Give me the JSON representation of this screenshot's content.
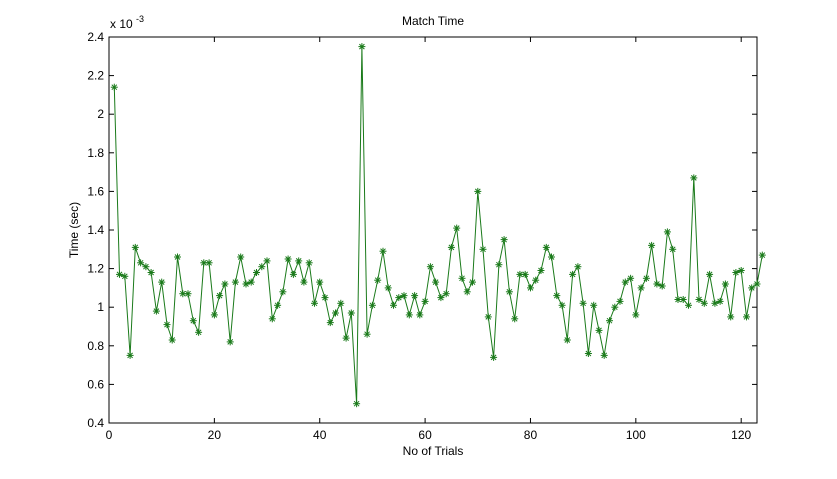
{
  "chart_data": {
    "type": "line",
    "title": "Match Time",
    "xlabel": "No of Trials",
    "ylabel": "Time (sec)",
    "y_multiplier_label": "x 10",
    "y_multiplier_exponent": "-3",
    "xlim": [
      0,
      123
    ],
    "ylim": [
      0.4,
      2.4
    ],
    "x_ticks": [
      0,
      20,
      40,
      60,
      80,
      100,
      120
    ],
    "y_ticks": [
      0.4,
      0.6,
      0.8,
      1,
      1.2,
      1.4,
      1.6,
      1.8,
      2,
      2.2,
      2.4
    ],
    "x_tick_labels": [
      "0",
      "20",
      "40",
      "60",
      "80",
      "100",
      "120"
    ],
    "y_tick_labels": [
      "0.4",
      "0.6",
      "0.8",
      "1",
      "1.2",
      "1.4",
      "1.6",
      "1.8",
      "2",
      "2.2",
      "2.4"
    ],
    "grid": false,
    "marker": "*",
    "color": "#1a7a1a",
    "series": [
      {
        "values": [
          2.14,
          1.17,
          1.16,
          0.75,
          1.31,
          1.23,
          1.21,
          1.18,
          0.98,
          1.13,
          0.91,
          0.83,
          1.26,
          1.07,
          1.07,
          0.93,
          0.87,
          1.23,
          1.23,
          0.96,
          1.06,
          1.12,
          0.82,
          1.13,
          1.26,
          1.12,
          1.13,
          1.18,
          1.21,
          1.24,
          0.94,
          1.01,
          1.08,
          1.25,
          1.17,
          1.24,
          1.13,
          1.23,
          1.02,
          1.13,
          1.05,
          0.92,
          0.97,
          1.02,
          0.84,
          0.97,
          0.5,
          2.35,
          0.86,
          1.01,
          1.14,
          1.29,
          1.1,
          1.01,
          1.05,
          1.06,
          0.96,
          1.06,
          0.96,
          1.03,
          1.21,
          1.13,
          1.05,
          1.07,
          1.31,
          1.41,
          1.15,
          1.08,
          1.13,
          1.6,
          1.3,
          0.95,
          0.74,
          1.22,
          1.35,
          1.08,
          0.94,
          1.17,
          1.17,
          1.1,
          1.14,
          1.19,
          1.31,
          1.26,
          1.06,
          1.01,
          0.83,
          1.17,
          1.21,
          1.02,
          0.76,
          1.01,
          0.88,
          0.75,
          0.93,
          1.0,
          1.03,
          1.13,
          1.15,
          0.96,
          1.1,
          1.15,
          1.32,
          1.12,
          1.11,
          1.39,
          1.3,
          1.04,
          1.04,
          1.01,
          1.67,
          1.04,
          1.02,
          1.17,
          1.02,
          1.03,
          1.12,
          0.95,
          1.18,
          1.19,
          0.95,
          1.1,
          1.12,
          1.27
        ]
      }
    ]
  }
}
